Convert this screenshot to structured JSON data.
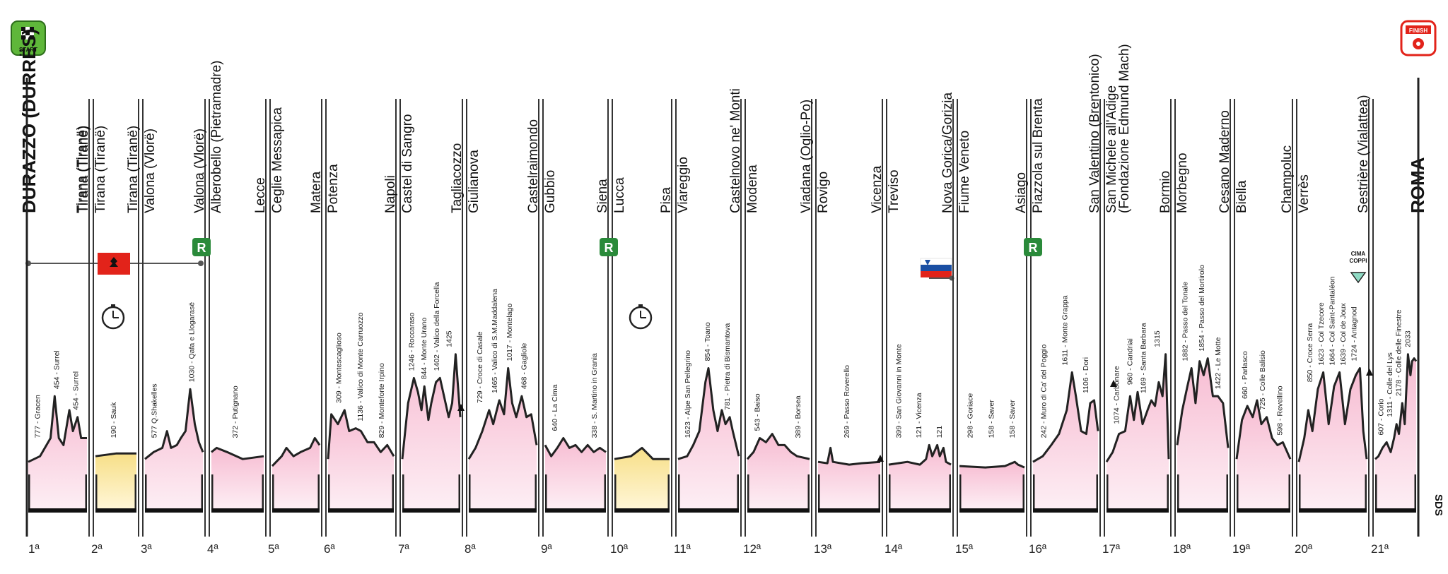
{
  "start_label": "START",
  "finish_label": "FINISH",
  "cima_coppi_label": "CIMA COPPI",
  "rest_badge": "R",
  "side_text": "SDS",
  "colors": {
    "road_fill": "#f5cfe0",
    "road_fill_top": "#fde9f1",
    "itt_fill": "#fbe7a3",
    "rest_green": "#2a8a3a",
    "albania_red": "#e2231a",
    "start_green": "#5fb73a",
    "finish_red": "#e2231a"
  },
  "stages": [
    {
      "num": "1ª",
      "cities": [
        "DURAZZO (DURRËS)",
        "Tirana (Tiranë)"
      ],
      "type": "road",
      "climbs": [
        "777 - Gracen",
        "454 - Surrel",
        "454 - Surrel"
      ]
    },
    {
      "num": "2ª",
      "cities": [
        "Tirana (Tiranë)",
        "Tirana (Tiranë)"
      ],
      "type": "itt",
      "climbs": [
        "190 - Sauk"
      ]
    },
    {
      "num": "3ª",
      "cities": [
        "Tirana (Tiranë)",
        "Valona (Vlorë)"
      ],
      "type": "road",
      "climbs": [
        "577 Q.Shakelles",
        "1030 - Qafa e Llogarasë"
      ]
    },
    {
      "num": "4ª",
      "cities": [
        "Valona (Vlorë)",
        "Alberobello (Pietramadre)"
      ],
      "type": "road",
      "climbs": [
        "372 - Putignano"
      ]
    },
    {
      "num": "5ª",
      "cities": [
        "Lecce",
        "Ceglie Messapica"
      ],
      "type": "road",
      "climbs": []
    },
    {
      "num": "6ª",
      "cities": [
        "Matera",
        "Potenza"
      ],
      "type": "road",
      "climbs": [
        "309 - Montescaglioso",
        "1136 - Valico di Monte Carruozzo",
        "829 - Monteforte Irpino"
      ]
    },
    {
      "num": "7ª",
      "cities": [
        "Napoli",
        "Castel di Sangro"
      ],
      "type": "road",
      "climbs": [
        "1246 - Roccaraso",
        "844 - Monte Urano",
        "1402 - Valico della Forcella",
        "1425"
      ]
    },
    {
      "num": "8ª",
      "cities": [
        "Tagliacozzo",
        "Giulianova"
      ],
      "type": "road",
      "climbs": [
        "729 - Croce di Casale",
        "1465 - Valico di S.M.Maddalena",
        "1017 - Montelago",
        "468 - Gagliole"
      ]
    },
    {
      "num": "9ª",
      "cities": [
        "Castelraimondo",
        "Gubbio"
      ],
      "type": "road",
      "climbs": [
        "640 - La Cima",
        "338 - S. Martino in Grania"
      ]
    },
    {
      "num": "10ª",
      "cities": [
        "Siena",
        "Lucca"
      ],
      "type": "itt",
      "climbs": []
    },
    {
      "num": "11ª",
      "cities": [
        "Pisa",
        "Viareggio"
      ],
      "type": "road",
      "climbs": [
        "1623 - Alpe San Pellegrino",
        "854 - Toano",
        "781 - Pietra di Bismantova"
      ]
    },
    {
      "num": "12ª",
      "cities": [
        "Castelnovo ne' Monti",
        "Modena"
      ],
      "type": "road",
      "climbs": [
        "543 - Baiso",
        "389 - Borsea"
      ]
    },
    {
      "num": "13ª",
      "cities": [
        "Viadana (Oglio-Po)",
        "Rovigo"
      ],
      "type": "road",
      "climbs": [
        "269 - Passo Roverello"
      ]
    },
    {
      "num": "14ª",
      "cities": [
        "Vicenza",
        "Treviso"
      ],
      "type": "road",
      "climbs": [
        "399 - San Giovanni in Monte",
        "121 - Vicenza",
        "121"
      ]
    },
    {
      "num": "15ª",
      "cities": [
        "Nova Gorica/Gorizia",
        "Fiume Veneto"
      ],
      "type": "road",
      "climbs": [
        "298 - Goriace",
        "158 - Saver",
        "158 - Saver"
      ]
    },
    {
      "num": "16ª",
      "cities": [
        "Asiago",
        "Piazzola sul Brenta"
      ],
      "type": "road",
      "climbs": [
        "242 - Muro di Ca' del Poggio",
        "1611 - Monte Grappa",
        "1106 - Dori"
      ]
    },
    {
      "num": "17ª",
      "cities": [
        "San Valentino (Brentonico)",
        "San Michele all'Adige (Fondazione Edmund Mach)"
      ],
      "type": "road",
      "climbs": [
        "1074 - Carbonare",
        "960 - Candriai",
        "1169 - Santa Barbara",
        "1315"
      ]
    },
    {
      "num": "18ª",
      "cities": [
        "Bormio",
        "Morbegno"
      ],
      "type": "road",
      "climbs": [
        "1882 - Passo del Tonale",
        "1854 - Passo del Mortirolo",
        "1422 - Le Motte"
      ]
    },
    {
      "num": "19ª",
      "cities": [
        "Cesano Maderno",
        "Biella"
      ],
      "type": "road",
      "climbs": [
        "660 - Parlasco",
        "725 - Colle Balisio",
        "598 - Revellino"
      ]
    },
    {
      "num": "20ª",
      "cities": [
        "Champoluc",
        "Verrès"
      ],
      "type": "road",
      "climbs": [
        "850 - Croce Serra",
        "1623 - Col Tzecore",
        "1664 - Col Saint-Pantaléon",
        "1639 - Col de Joux",
        "1724 - Antagnod"
      ]
    },
    {
      "num": "21ª",
      "cities": [
        "Sestrière (Vialattea)",
        "ROMA"
      ],
      "type": "road",
      "climbs": [
        "607 - Corio",
        "1311 - Colle del Lys",
        "2178 - Colle delle Finestre",
        "2033"
      ]
    }
  ]
}
